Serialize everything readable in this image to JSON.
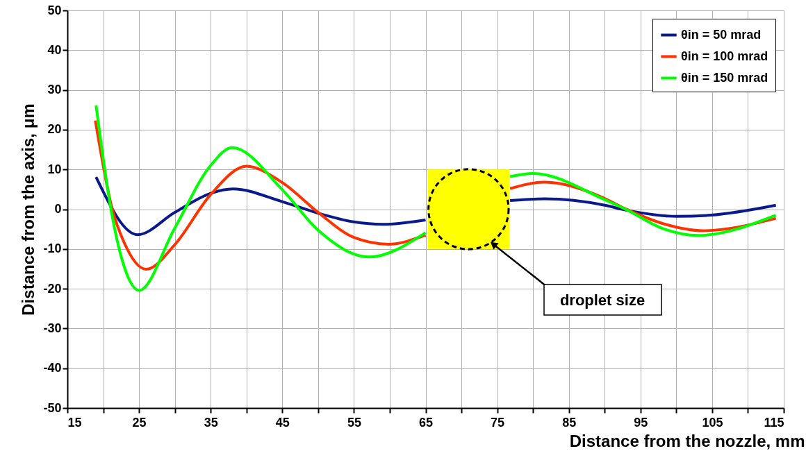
{
  "chart_data": {
    "type": "line",
    "xlabel": "Distance from the nozzle, mm",
    "ylabel": "Distance from the axis, μm",
    "annotations": [
      "droplet size"
    ],
    "xlim": [
      15,
      115
    ],
    "xticks": [
      15,
      {
        "value": 20,
        "label": null
      },
      25,
      {
        "value": 30,
        "label": null
      },
      35,
      {
        "value": 40,
        "label": null
      },
      45,
      {
        "value": 50,
        "label": null
      },
      55,
      {
        "value": 60,
        "label": null
      },
      65,
      {
        "value": 70,
        "label": null
      },
      75,
      {
        "value": 80,
        "label": null
      },
      85,
      {
        "value": 90,
        "label": null
      },
      95,
      {
        "value": 100,
        "label": null
      },
      105,
      {
        "value": 110,
        "label": null
      },
      115
    ],
    "ylim": [
      -50,
      50
    ],
    "yticks": [
      -50,
      -40,
      -30,
      -20,
      -10,
      0,
      10,
      20,
      30,
      40,
      50
    ],
    "grid": true,
    "legend": "top right",
    "marker": "none",
    "line_style": "solid",
    "series": [
      {
        "name": "θin = 50 mrad",
        "color": "#0a1a8c",
        "x": [
          19,
          24.8,
          30,
          35,
          38.1,
          45,
          50,
          55,
          59,
          65,
          71,
          76.8,
          81.6,
          90,
          92.9,
          100.1,
          104.8,
          113.9
        ],
        "values": [
          8.1,
          -6.4,
          -0.8,
          4.0,
          5.1,
          1.9,
          -1.0,
          -3.2,
          -3.8,
          -2.7,
          null,
          2.2,
          2.6,
          1.0,
          -0.2,
          -1.8,
          -1.5,
          1.0
        ]
      },
      {
        "name": "θin = 100 mrad",
        "color": "#ff3300",
        "x": [
          18.9,
          21.25,
          22.9,
          26,
          30,
          35,
          40,
          45,
          50,
          55,
          59.8,
          65,
          71,
          76.8,
          81.6,
          90,
          92.9,
          98.3,
          103.7,
          113.9
        ],
        "values": [
          22.3,
          0.1,
          -8.3,
          -15.1,
          -8.9,
          3.7,
          10.8,
          6.7,
          -0.8,
          -7.1,
          -8.8,
          -6.5,
          null,
          5.2,
          6.8,
          2.7,
          0.1,
          -3.7,
          -5.4,
          -2.3
        ]
      },
      {
        "name": "θin = 150 mrad",
        "color": "#00ff00",
        "x": [
          19,
          21.25,
          22.9,
          25,
          30,
          35,
          38,
          45,
          50,
          57.1,
          65,
          71,
          76.8,
          80,
          90,
          92.9,
          98.3,
          103,
          113.9
        ],
        "values": [
          26.1,
          -1.7,
          -14.3,
          -20.4,
          -4.7,
          11.0,
          15.5,
          4.9,
          -5.3,
          -12.0,
          -5.9,
          null,
          8.2,
          9.0,
          2.4,
          0,
          -5.0,
          -6.6,
          -1.5
        ]
      }
    ]
  }
}
